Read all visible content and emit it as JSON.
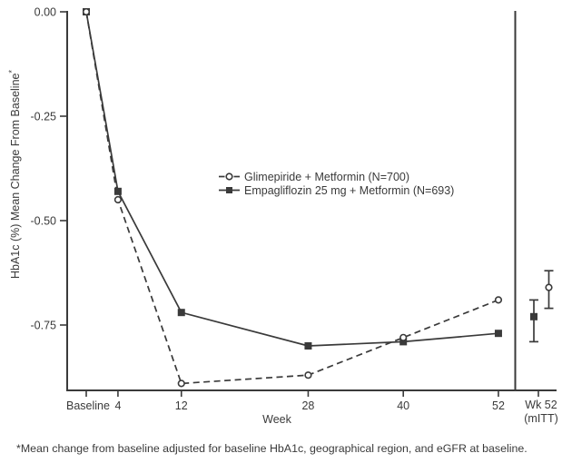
{
  "figure": {
    "footnote": "*Mean change from baseline adjusted for baseline HbA1c, geographical region, and eGFR at baseline."
  },
  "chart_data": {
    "type": "line",
    "title": "",
    "xlabel": "Week",
    "ylabel": "HbA1c (%) Mean Change From Baseline",
    "ylabel_superscript": "*",
    "x_weeks": [
      0,
      4,
      12,
      28,
      40,
      52
    ],
    "x_tick_labels": [
      "Baseline",
      "4",
      "12",
      "28",
      "40",
      "52"
    ],
    "y_ticks": [
      0.0,
      -0.25,
      -0.5,
      -0.75
    ],
    "y_tick_labels": [
      "0.00",
      "-0.25",
      "-0.50",
      "-0.75"
    ],
    "ylim": [
      -0.91,
      0.0
    ],
    "grid": false,
    "colors": {
      "line": "#3a3a3a",
      "text": "#3a3a3a",
      "background": "#ffffff"
    },
    "series": [
      {
        "name": "Glimepiride + Metformin (N=700)",
        "marker": "open-circle",
        "line_style": "dashed",
        "values": [
          0.0,
          -0.45,
          -0.89,
          -0.87,
          -0.78,
          -0.69
        ]
      },
      {
        "name": "Empagliflozin 25 mg + Metformin (N=693)",
        "marker": "filled-square",
        "line_style": "solid",
        "values": [
          0.0,
          -0.43,
          -0.72,
          -0.8,
          -0.79,
          -0.77
        ]
      }
    ],
    "legend": {
      "position": "center",
      "items": [
        {
          "label": "Glimepiride + Metformin (N=700)",
          "marker": "open-circle",
          "line_style": "dashed"
        },
        {
          "label": "Empagliflozin 25 mg + Metformin (N=693)",
          "marker": "filled-square",
          "line_style": "solid"
        }
      ]
    },
    "right_panel": {
      "label_line1": "Wk 52",
      "label_line2": "(mITT)",
      "points": [
        {
          "series": "Empagliflozin 25 mg + Metformin",
          "marker": "filled-square",
          "value": -0.73,
          "ci_high": -0.69,
          "ci_low": -0.79
        },
        {
          "series": "Glimepiride + Metformin",
          "marker": "open-circle",
          "value": -0.66,
          "ci_high": -0.62,
          "ci_low": -0.71
        }
      ]
    }
  }
}
